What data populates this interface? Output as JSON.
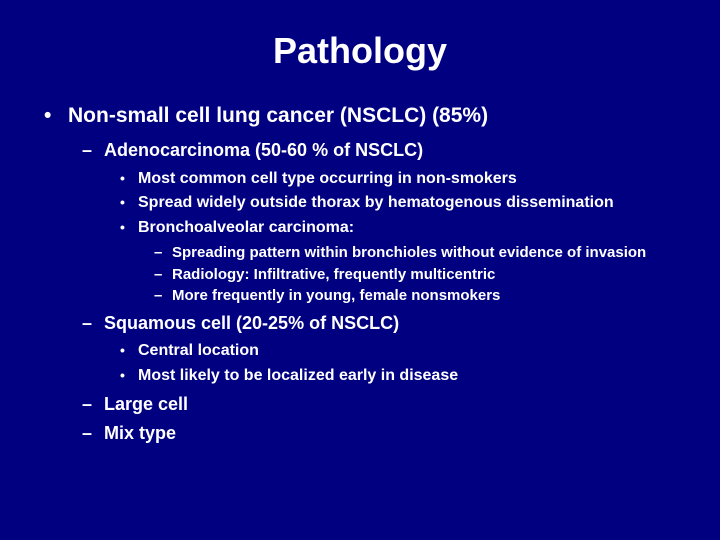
{
  "background_color": "#000080",
  "text_color": "#ffffff",
  "title": "Pathology",
  "title_fontsize": 36,
  "bullets": {
    "fontsize_lvl1": 21,
    "fontsize_lvl2": 18,
    "fontsize_lvl3": 16,
    "fontsize_lvl4": 15,
    "font_weight": "bold",
    "marker_lvl1": "•",
    "marker_lvl2": "–",
    "marker_lvl3": "•",
    "marker_lvl4": "–"
  },
  "content": {
    "l1_0": "Non-small cell lung cancer (NSCLC) (85%)",
    "l2_0": "Adenocarcinoma (50-60 % of NSCLC)",
    "l3_0": "Most common cell type occurring in non-smokers",
    "l3_1": "Spread widely outside thorax by hematogenous dissemination",
    "l3_2": "Bronchoalveolar carcinoma:",
    "l4_0": "Spreading pattern within bronchioles without evidence of invasion",
    "l4_1": "Radiology: Infiltrative, frequently multicentric",
    "l4_2": "More frequently in young, female nonsmokers",
    "l2_1": "Squamous cell (20-25% of NSCLC)",
    "l3_3": "Central location",
    "l3_4": "Most likely to be localized early in disease",
    "l2_2": "Large cell",
    "l2_3": "Mix type"
  }
}
